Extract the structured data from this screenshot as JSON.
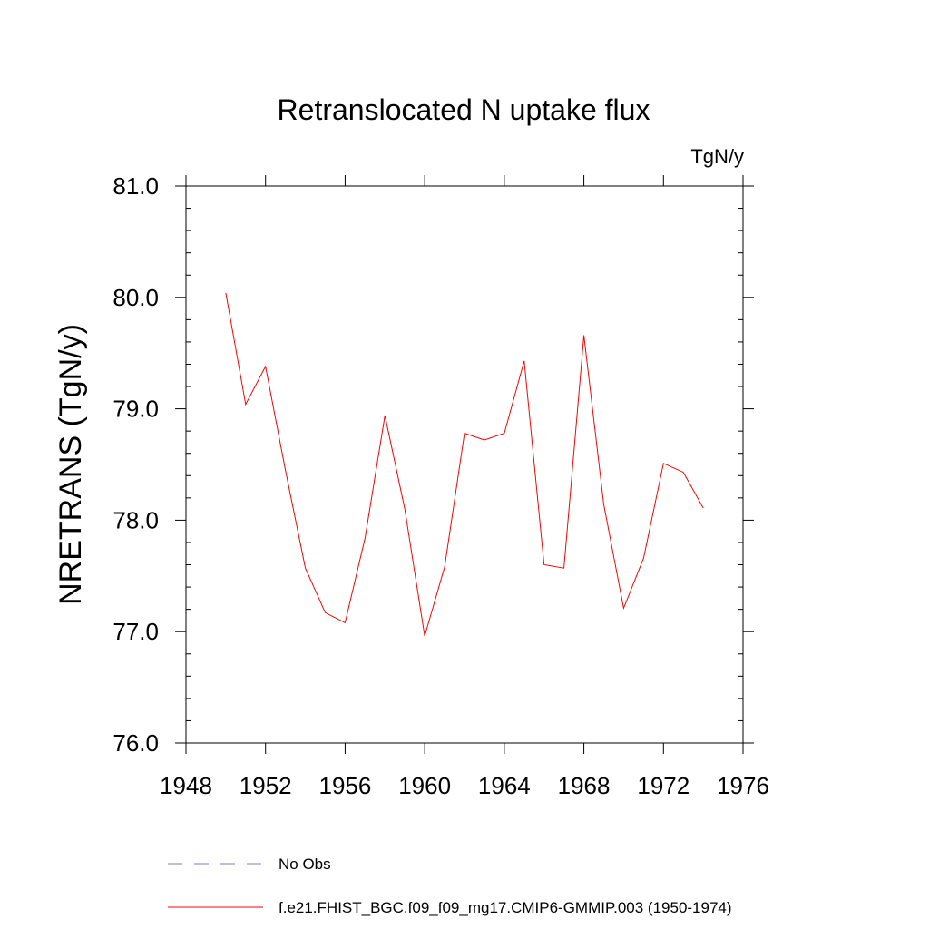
{
  "chart_data": {
    "type": "line",
    "title": "Retranslocated N uptake flux",
    "units": "TgN/y",
    "xlabel": "",
    "ylabel": "NRETRANS  (TgN/y)",
    "xlim": [
      1948,
      1976
    ],
    "ylim": [
      76.0,
      81.0
    ],
    "x_ticks": [
      1948,
      1952,
      1956,
      1960,
      1964,
      1968,
      1972,
      1976
    ],
    "y_ticks": [
      "76.0",
      "77.0",
      "78.0",
      "79.0",
      "80.0",
      "81.0"
    ],
    "grid": false,
    "legend_position": "bottom",
    "series": [
      {
        "name": "f.e21.FHIST_BGC.f09_f09_mg17.CMIP6-GMMIP.003 (1950-1974)",
        "color": "#ff0000",
        "style": "solid",
        "x": [
          1950,
          1951,
          1952,
          1953,
          1954,
          1955,
          1956,
          1957,
          1958,
          1959,
          1960,
          1961,
          1962,
          1963,
          1964,
          1965,
          1966,
          1967,
          1968,
          1969,
          1970,
          1971,
          1972,
          1973,
          1974
        ],
        "y": [
          80.04,
          79.04,
          79.38,
          78.45,
          77.57,
          77.17,
          77.08,
          77.84,
          78.94,
          78.1,
          76.96,
          77.58,
          78.78,
          78.72,
          78.78,
          79.43,
          77.6,
          77.57,
          79.66,
          78.14,
          77.21,
          77.66,
          78.51,
          78.43,
          78.11
        ]
      }
    ],
    "legend": [
      {
        "label": "No Obs",
        "color": "#7b7bd6",
        "style": "dashed"
      },
      {
        "label": "f.e21.FHIST_BGC.f09_f09_mg17.CMIP6-GMMIP.003 (1950-1974)",
        "color": "#ff0000",
        "style": "solid"
      }
    ]
  }
}
